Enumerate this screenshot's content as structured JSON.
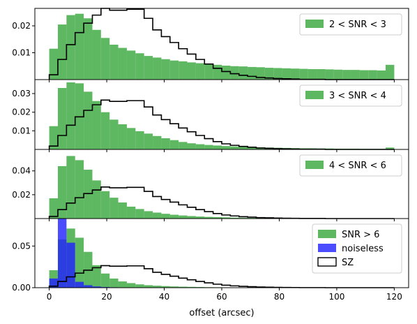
{
  "chart_data": {
    "type": "bar",
    "xlabel": "offset (arcsec)",
    "xlim": [
      -5,
      125
    ],
    "xticks": [
      0,
      20,
      40,
      60,
      80,
      100,
      120
    ],
    "bin_edges": [
      0,
      3,
      6,
      9,
      12,
      15,
      18,
      21,
      24,
      27,
      30,
      33,
      36,
      39,
      42,
      45,
      48,
      51,
      54,
      57,
      60,
      63,
      66,
      69,
      72,
      75,
      78,
      81,
      84,
      87,
      90,
      93,
      96,
      99,
      102,
      105,
      108,
      111,
      114,
      117,
      120
    ],
    "colors": {
      "green": "#4caf50",
      "blue": "#1f1fff",
      "outline": "#000000"
    },
    "panels": [
      {
        "ylim": [
          0,
          0.0265
        ],
        "yticks": [
          0.01,
          0.02
        ],
        "ytick_labels": [
          "0.01",
          "0.02"
        ],
        "series": [
          {
            "name": "2 < SNR < 3",
            "kind": "filled",
            "color": "#4caf50",
            "values": [
              0.0115,
              0.0205,
              0.024,
              0.0245,
              0.0228,
              0.0185,
              0.0155,
              0.013,
              0.0118,
              0.0108,
              0.0098,
              0.0088,
              0.0082,
              0.0076,
              0.0071,
              0.0068,
              0.0064,
              0.0061,
              0.0058,
              0.0055,
              0.0052,
              0.005,
              0.0049,
              0.0047,
              0.0046,
              0.0044,
              0.0043,
              0.0042,
              0.0041,
              0.004,
              0.0039,
              0.0039,
              0.0038,
              0.0037,
              0.0036,
              0.0036,
              0.0035,
              0.0035,
              0.0034,
              0.0055
            ]
          },
          {
            "name": "SZ",
            "kind": "outline",
            "color": "#000000",
            "values": [
              0.0018,
              0.0075,
              0.013,
              0.0175,
              0.021,
              0.024,
              0.0265,
              0.0258,
              0.0258,
              0.0262,
              0.0262,
              0.0228,
              0.0185,
              0.016,
              0.0138,
              0.0115,
              0.0095,
              0.0075,
              0.0058,
              0.0042,
              0.003,
              0.0022,
              0.0016,
              0.0012,
              0.0008,
              0.0006,
              0.0004,
              0.0003,
              0.0002,
              0.0001,
              0.0001,
              0.0001,
              0.0,
              0.0,
              0.0,
              0.0,
              0.0,
              0.0,
              0.0,
              0.0
            ]
          }
        ]
      },
      {
        "ylim": [
          0,
          0.0375
        ],
        "yticks": [
          0.01,
          0.02,
          0.03
        ],
        "ytick_labels": [
          "0.01",
          "0.02",
          "0.03"
        ],
        "series": [
          {
            "name": "3 < SNR < 4",
            "kind": "filled",
            "color": "#4caf50",
            "values": [
              0.0125,
              0.033,
              0.036,
              0.0355,
              0.031,
              0.026,
              0.02,
              0.016,
              0.0135,
              0.0115,
              0.0098,
              0.0085,
              0.0072,
              0.006,
              0.005,
              0.004,
              0.0033,
              0.0028,
              0.0024,
              0.0021,
              0.0018,
              0.0016,
              0.0014,
              0.0012,
              0.0011,
              0.001,
              0.0009,
              0.0008,
              0.0007,
              0.0006,
              0.0006,
              0.0005,
              0.0005,
              0.0004,
              0.0004,
              0.0004,
              0.0003,
              0.0003,
              0.0003,
              0.001
            ]
          },
          {
            "name": "SZ",
            "kind": "outline",
            "color": "#000000",
            "values": [
              0.0018,
              0.0075,
              0.013,
              0.0175,
              0.021,
              0.024,
              0.0265,
              0.0258,
              0.0258,
              0.0262,
              0.0262,
              0.0228,
              0.0185,
              0.016,
              0.0138,
              0.0115,
              0.0095,
              0.0075,
              0.0058,
              0.0042,
              0.003,
              0.0022,
              0.0016,
              0.0012,
              0.0008,
              0.0006,
              0.0004,
              0.0003,
              0.0002,
              0.0001,
              0.0001,
              0.0001,
              0.0,
              0.0,
              0.0,
              0.0,
              0.0,
              0.0,
              0.0,
              0.0
            ]
          }
        ]
      },
      {
        "ylim": [
          0,
          0.058
        ],
        "yticks": [
          0.02,
          0.04
        ],
        "ytick_labels": [
          "0.02",
          "0.04"
        ],
        "series": [
          {
            "name": "4 < SNR < 6",
            "kind": "filled",
            "color": "#4caf50",
            "values": [
              0.017,
              0.044,
              0.0525,
              0.049,
              0.041,
              0.032,
              0.023,
              0.0175,
              0.0135,
              0.01,
              0.008,
              0.0062,
              0.005,
              0.004,
              0.0032,
              0.0026,
              0.0021,
              0.0017,
              0.0014,
              0.0012,
              0.001,
              0.0008,
              0.0007,
              0.0006,
              0.0005,
              0.0004,
              0.0004,
              0.0003,
              0.0003,
              0.0002,
              0.0002,
              0.0002,
              0.0002,
              0.0001,
              0.0001,
              0.0001,
              0.0001,
              0.0001,
              0.0001,
              0.0001
            ]
          },
          {
            "name": "SZ",
            "kind": "outline",
            "color": "#000000",
            "values": [
              0.0018,
              0.0075,
              0.013,
              0.0175,
              0.021,
              0.024,
              0.0265,
              0.0258,
              0.0258,
              0.0262,
              0.0262,
              0.0228,
              0.0185,
              0.016,
              0.0138,
              0.0115,
              0.0095,
              0.0075,
              0.0058,
              0.0042,
              0.003,
              0.0022,
              0.0016,
              0.0012,
              0.0008,
              0.0006,
              0.0004,
              0.0003,
              0.0002,
              0.0001,
              0.0001,
              0.0001,
              0.0,
              0.0,
              0.0,
              0.0,
              0.0,
              0.0,
              0.0,
              0.0
            ]
          }
        ]
      },
      {
        "ylim": [
          0,
          0.083
        ],
        "yticks": [
          0.0,
          0.05
        ],
        "ytick_labels": [
          "0.00",
          "0.05"
        ],
        "series": [
          {
            "name": "SNR > 6",
            "kind": "filled",
            "color": "#4caf50",
            "values": [
              0.021,
              0.058,
              0.071,
              0.06,
              0.043,
              0.027,
              0.017,
              0.011,
              0.0075,
              0.0055,
              0.004,
              0.003,
              0.0024,
              0.0019,
              0.0015,
              0.0012,
              0.001,
              0.0008,
              0.0006,
              0.0005,
              0.0004,
              0.0003,
              0.0003,
              0.0002,
              0.0002,
              0.0002,
              0.0001,
              0.0001,
              0.0001,
              0.0001,
              0.0001,
              0.0001,
              0.0001,
              0.0001,
              0.0001,
              0.0001,
              0.0001,
              0.0001,
              0.0001,
              0.0001
            ]
          },
          {
            "name": "noiseless",
            "kind": "filled",
            "color": "#1f1fff",
            "opacity": 0.8,
            "values": [
              0.011,
              0.083,
              0.054,
              0.007,
              0.003,
              0.0015,
              0.0008,
              0.0005,
              0.0003,
              0.0002,
              0.0001,
              0.0001,
              0.0001,
              0.0,
              0.0,
              0.0,
              0.0,
              0.0,
              0.0,
              0.0,
              0.0,
              0.0,
              0.0,
              0.0,
              0.0,
              0.0,
              0.0,
              0.0,
              0.0,
              0.0,
              0.0,
              0.0,
              0.0,
              0.0,
              0.0,
              0.0,
              0.0,
              0.0,
              0.0,
              0.0
            ]
          },
          {
            "name": "SZ",
            "kind": "outline",
            "color": "#000000",
            "values": [
              0.0018,
              0.0075,
              0.013,
              0.0175,
              0.021,
              0.024,
              0.0265,
              0.0258,
              0.0258,
              0.0262,
              0.0262,
              0.0228,
              0.0185,
              0.016,
              0.0138,
              0.0115,
              0.0095,
              0.0075,
              0.0058,
              0.0042,
              0.003,
              0.0022,
              0.0016,
              0.0012,
              0.0008,
              0.0006,
              0.0004,
              0.0003,
              0.0002,
              0.0001,
              0.0001,
              0.0001,
              0.0,
              0.0,
              0.0,
              0.0,
              0.0,
              0.0,
              0.0,
              0.0
            ]
          }
        ],
        "legend": [
          "SNR > 6",
          "noiseless",
          "SZ"
        ]
      }
    ]
  }
}
